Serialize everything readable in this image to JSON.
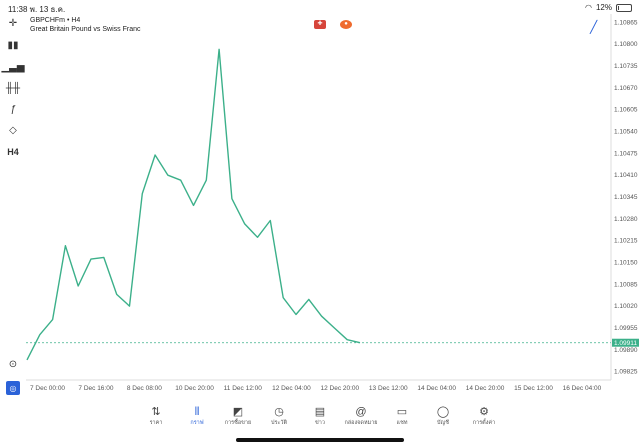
{
  "status_bar": {
    "time": "11:38",
    "date": "พ. 13 ธ.ค.",
    "battery": "12%",
    "battery_level": 0.12
  },
  "symbol": {
    "title": "GBPCHFm • H4",
    "description": "Great Britain Pound vs Swiss Franc"
  },
  "tools": [
    "crosshair-icon",
    "candle-icon",
    "indicators-icon",
    "settings-sliders-icon",
    "function-icon",
    "objects-icon",
    "timeframe"
  ],
  "timeframe_label": "H4",
  "chart_data": {
    "type": "line",
    "series": [
      {
        "values": [
          1.0986,
          1.09935,
          1.0998,
          1.102,
          1.1008,
          1.1016,
          1.10165,
          1.10055,
          1.1002,
          1.10355,
          1.1047,
          1.1041,
          1.10395,
          1.1032,
          1.10395,
          1.10785,
          1.1034,
          1.10265,
          1.10225,
          1.10275,
          1.10045,
          1.09995,
          1.1004,
          1.0999,
          1.09955,
          1.0992,
          1.09911
        ]
      }
    ],
    "current_price": "1.09911",
    "y_ticks": [
      "1.10865",
      "1.10800",
      "1.10735",
      "1.10670",
      "1.10605",
      "1.10540",
      "1.10475",
      "1.10410",
      "1.10345",
      "1.10280",
      "1.10215",
      "1.10150",
      "1.10085",
      "1.10020",
      "1.09955",
      "1.09890",
      "1.09825"
    ],
    "ylim": [
      1.098,
      1.1089
    ],
    "x_ticks": [
      "7 Dec 00:00",
      "7 Dec 16:00",
      "8 Dec 08:00",
      "10 Dec 20:00",
      "11 Dec 12:00",
      "12 Dec 04:00",
      "12 Dec 20:00",
      "13 Dec 12:00",
      "14 Dec 04:00",
      "14 Dec 20:00",
      "15 Dec 12:00",
      "16 Dec 04:00"
    ],
    "line_color": "#3cb08a"
  },
  "tabs": [
    {
      "label": "ราคา",
      "icon": "quotes-icon"
    },
    {
      "label": "กราฟ",
      "icon": "chart-icon",
      "active": true
    },
    {
      "label": "การซื้อขาย",
      "icon": "trade-icon"
    },
    {
      "label": "ประวัติ",
      "icon": "history-icon"
    },
    {
      "label": "ข่าว",
      "icon": "news-icon"
    },
    {
      "label": "กล่องจดหมาย",
      "icon": "mailbox-icon"
    },
    {
      "label": "แชท",
      "icon": "chat-icon"
    },
    {
      "label": "บัญชี",
      "icon": "account-icon"
    },
    {
      "label": "การตั้งค่า",
      "icon": "settings-icon"
    }
  ]
}
